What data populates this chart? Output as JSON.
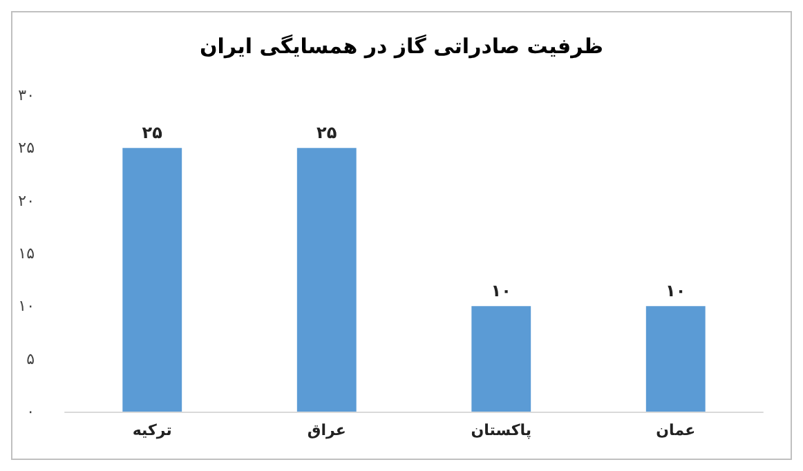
{
  "chart_data": {
    "type": "bar",
    "title": "ظرفیت صادراتی گاز در همسایگی ایران",
    "categories": [
      "ترکیه",
      "عراق",
      "پاکستان",
      "عمان"
    ],
    "values": [
      25,
      25,
      10,
      10
    ],
    "color": "#5b9bd5",
    "value_labels": [
      "۲۵",
      "۲۵",
      "۱۰",
      "۱۰"
    ],
    "ylim": [
      0,
      30
    ],
    "yticks": [
      {
        "value": 0,
        "label": "۰"
      },
      {
        "value": 5,
        "label": "۵"
      },
      {
        "value": 10,
        "label": "۱۰"
      },
      {
        "value": 15,
        "label": "۱۵"
      },
      {
        "value": 20,
        "label": "۲۰"
      },
      {
        "value": 25,
        "label": "۲۵"
      },
      {
        "value": 30,
        "label": "۳۰"
      }
    ],
    "grid": false
  }
}
